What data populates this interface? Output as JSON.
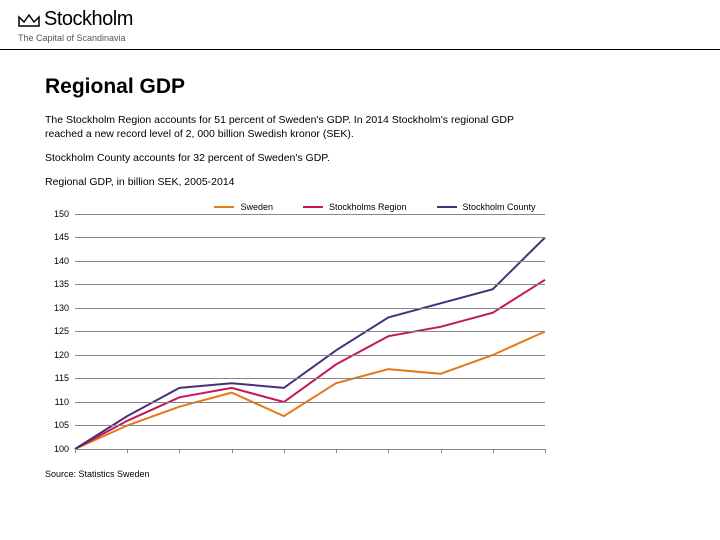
{
  "header": {
    "logo_text": "Stockholm",
    "tagline": "The Capital of Scandinavia"
  },
  "page": {
    "title": "Regional GDP",
    "description": "The Stockholm Region accounts for 51 percent of Sweden's GDP. In 2014 Stockholm's regional GDP reached a new record level of 2, 000 billion Swedish kronor (SEK).",
    "county_note": "Stockholm County accounts for 32 percent of Sweden's GDP.",
    "subtitle": "Regional GDP, in billion SEK, 2005-2014",
    "source": "Source: Statistics Sweden"
  },
  "chart": {
    "type": "line",
    "ylim": [
      100,
      150
    ],
    "ytick_step": 5,
    "y_ticks": [
      100,
      105,
      110,
      115,
      120,
      125,
      130,
      135,
      140,
      145,
      150
    ],
    "x_count": 10,
    "grid_color": "#888888",
    "background_color": "#ffffff",
    "line_width": 2,
    "series": [
      {
        "name": "Sweden",
        "color": "#e67817",
        "values": [
          100,
          105,
          109,
          112,
          107,
          114,
          117,
          116,
          120,
          125
        ]
      },
      {
        "name": "Stockholms Region",
        "color": "#c2185b",
        "values": [
          100,
          106,
          111,
          113,
          110,
          118,
          124,
          126,
          129,
          136
        ]
      },
      {
        "name": "Stockholm County",
        "color": "#4a2e7a",
        "values": [
          100,
          107,
          113,
          114,
          113,
          121,
          128,
          131,
          134,
          145
        ]
      }
    ]
  }
}
